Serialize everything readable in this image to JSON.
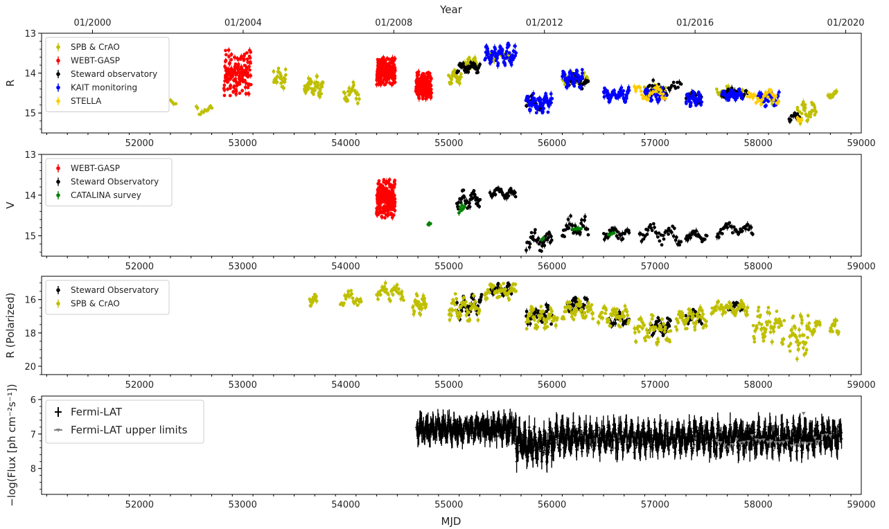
{
  "top_axis": {
    "label": "Year",
    "ticks": [
      {
        "label": "01/2000",
        "mjd": 51544
      },
      {
        "label": "01/2004",
        "mjd": 53005
      },
      {
        "label": "01/2008",
        "mjd": 54466
      },
      {
        "label": "01/2012",
        "mjd": 55927
      },
      {
        "label": "01/2016",
        "mjd": 57388
      },
      {
        "label": "01/2020",
        "mjd": 58849
      }
    ]
  },
  "x_axis": {
    "label": "MJD",
    "range": [
      51050,
      59000
    ],
    "ticks": [
      "52000",
      "53000",
      "54000",
      "55000",
      "56000",
      "57000",
      "58000",
      "59000"
    ]
  },
  "colors": {
    "olive": "#bfbf00",
    "red": "#ff0000",
    "black": "#000000",
    "blue": "#0000ff",
    "gold": "#ffcc00",
    "green": "#008000",
    "gray": "#808080"
  },
  "chart_data": [
    {
      "type": "scatter",
      "panel": "R band photometry",
      "ylabel": "R",
      "ylim": [
        15.5,
        13
      ],
      "y_inverted": true,
      "yticks": [
        "13",
        "14",
        "15"
      ],
      "grid": false,
      "legend_position": "top-left",
      "series": [
        {
          "name": "SPB & CrAO",
          "color": "#bfbf00",
          "segments": [
            {
              "x0": 52300,
              "x1": 52350,
              "y": 14.7,
              "amp": 0.1,
              "n": 4
            },
            {
              "x0": 52550,
              "x1": 52700,
              "y": 14.9,
              "amp": 0.2,
              "n": 12
            },
            {
              "x0": 53300,
              "x1": 53420,
              "y": 14.1,
              "amp": 0.35,
              "n": 30
            },
            {
              "x0": 53600,
              "x1": 53780,
              "y": 14.35,
              "amp": 0.3,
              "n": 50
            },
            {
              "x0": 53980,
              "x1": 54130,
              "y": 14.5,
              "amp": 0.3,
              "n": 25
            },
            {
              "x0": 55000,
              "x1": 55120,
              "y": 14.1,
              "amp": 0.2,
              "n": 30
            },
            {
              "x0": 55150,
              "x1": 55270,
              "y": 13.75,
              "amp": 0.15,
              "n": 40
            },
            {
              "x0": 55400,
              "x1": 55600,
              "y": 13.55,
              "amp": 0.15,
              "n": 30
            },
            {
              "x0": 56100,
              "x1": 56350,
              "y": 14.15,
              "amp": 0.2,
              "n": 40
            },
            {
              "x0": 56900,
              "x1": 57100,
              "y": 14.45,
              "amp": 0.2,
              "n": 30
            },
            {
              "x0": 57600,
              "x1": 57850,
              "y": 14.45,
              "amp": 0.15,
              "n": 30
            },
            {
              "x0": 58000,
              "x1": 58150,
              "y": 14.6,
              "amp": 0.2,
              "n": 25
            },
            {
              "x0": 58380,
              "x1": 58560,
              "y": 14.95,
              "amp": 0.35,
              "n": 40
            },
            {
              "x0": 58680,
              "x1": 58760,
              "y": 14.55,
              "amp": 0.1,
              "n": 15
            }
          ]
        },
        {
          "name": "WEBT-GASP",
          "color": "#ff0000",
          "segments": [
            {
              "x0": 52820,
              "x1": 53080,
              "y": 14.0,
              "amp": 0.6,
              "n": 160
            },
            {
              "x0": 54300,
              "x1": 54480,
              "y": 13.95,
              "amp": 0.35,
              "n": 180
            },
            {
              "x0": 54680,
              "x1": 54830,
              "y": 14.3,
              "amp": 0.35,
              "n": 170
            }
          ]
        },
        {
          "name": "Steward observatory",
          "color": "#000000",
          "segments": [
            {
              "x0": 55080,
              "x1": 55300,
              "y": 13.85,
              "amp": 0.15,
              "n": 40
            },
            {
              "x0": 55750,
              "x1": 55900,
              "y": 14.75,
              "amp": 0.2,
              "n": 20
            },
            {
              "x0": 56150,
              "x1": 56350,
              "y": 14.2,
              "amp": 0.2,
              "n": 25
            },
            {
              "x0": 56900,
              "x1": 57250,
              "y": 14.4,
              "amp": 0.25,
              "n": 30
            },
            {
              "x0": 57300,
              "x1": 57450,
              "y": 14.6,
              "amp": 0.15,
              "n": 20
            },
            {
              "x0": 57650,
              "x1": 57900,
              "y": 14.5,
              "amp": 0.15,
              "n": 25
            },
            {
              "x0": 58300,
              "x1": 58400,
              "y": 15.1,
              "amp": 0.15,
              "n": 15
            }
          ]
        },
        {
          "name": "KAIT monitoring",
          "color": "#0000ff",
          "segments": [
            {
              "x0": 55350,
              "x1": 55650,
              "y": 13.55,
              "amp": 0.3,
              "n": 80
            },
            {
              "x0": 55750,
              "x1": 56000,
              "y": 14.75,
              "amp": 0.25,
              "n": 80
            },
            {
              "x0": 56100,
              "x1": 56300,
              "y": 14.15,
              "amp": 0.25,
              "n": 60
            },
            {
              "x0": 56500,
              "x1": 56750,
              "y": 14.55,
              "amp": 0.2,
              "n": 60
            },
            {
              "x0": 56900,
              "x1": 57100,
              "y": 14.55,
              "amp": 0.2,
              "n": 50
            },
            {
              "x0": 57300,
              "x1": 57450,
              "y": 14.65,
              "amp": 0.2,
              "n": 50
            },
            {
              "x0": 57650,
              "x1": 57850,
              "y": 14.55,
              "amp": 0.15,
              "n": 50
            },
            {
              "x0": 58000,
              "x1": 58200,
              "y": 14.65,
              "amp": 0.2,
              "n": 40
            }
          ]
        },
        {
          "name": "STELLA",
          "color": "#ffcc00",
          "segments": [
            {
              "x0": 56800,
              "x1": 57100,
              "y": 14.5,
              "amp": 0.2,
              "n": 30
            },
            {
              "x0": 57900,
              "x1": 58200,
              "y": 14.6,
              "amp": 0.2,
              "n": 30
            },
            {
              "x0": 58380,
              "x1": 58420,
              "y": 15.2,
              "amp": 0.1,
              "n": 6
            }
          ]
        }
      ]
    },
    {
      "type": "scatter",
      "panel": "V band photometry",
      "ylabel": "V",
      "ylim": [
        15.5,
        13
      ],
      "y_inverted": true,
      "yticks": [
        "13",
        "14",
        "15"
      ],
      "grid": false,
      "legend_position": "top-left",
      "series": [
        {
          "name": "WEBT-GASP",
          "color": "#ff0000",
          "segments": [
            {
              "x0": 54300,
              "x1": 54480,
              "y": 14.1,
              "amp": 0.5,
              "n": 220
            }
          ]
        },
        {
          "name": "Steward Observatory",
          "color": "#000000",
          "segments": [
            {
              "x0": 55080,
              "x1": 55300,
              "y": 14.1,
              "amp": 0.25,
              "n": 40
            },
            {
              "x0": 55400,
              "x1": 55650,
              "y": 13.95,
              "amp": 0.15,
              "n": 35
            },
            {
              "x0": 55750,
              "x1": 56000,
              "y": 15.1,
              "amp": 0.3,
              "n": 35
            },
            {
              "x0": 56100,
              "x1": 56350,
              "y": 14.8,
              "amp": 0.3,
              "n": 35
            },
            {
              "x0": 56500,
              "x1": 56750,
              "y": 14.95,
              "amp": 0.15,
              "n": 30
            },
            {
              "x0": 56850,
              "x1": 57250,
              "y": 14.95,
              "amp": 0.3,
              "n": 40
            },
            {
              "x0": 57300,
              "x1": 57500,
              "y": 15.0,
              "amp": 0.15,
              "n": 25
            },
            {
              "x0": 57600,
              "x1": 57950,
              "y": 14.85,
              "amp": 0.2,
              "n": 35
            }
          ]
        },
        {
          "name": "CATALINA survey",
          "color": "#008000",
          "segments": [
            {
              "x0": 54800,
              "x1": 54820,
              "y": 14.7,
              "amp": 0.03,
              "n": 5
            },
            {
              "x0": 55100,
              "x1": 55150,
              "y": 14.3,
              "amp": 0.15,
              "n": 6
            },
            {
              "x0": 55900,
              "x1": 55920,
              "y": 15.05,
              "amp": 0.05,
              "n": 3
            },
            {
              "x0": 56200,
              "x1": 56280,
              "y": 14.8,
              "amp": 0.1,
              "n": 5
            },
            {
              "x0": 56550,
              "x1": 56600,
              "y": 14.95,
              "amp": 0.05,
              "n": 4
            }
          ]
        }
      ]
    },
    {
      "type": "scatter",
      "panel": "R band polarized flux",
      "ylabel": "R (Polarized)",
      "ylim": [
        20.5,
        14.6
      ],
      "y_inverted": true,
      "yticks": [
        "16",
        "18",
        "20"
      ],
      "grid": false,
      "legend_position": "top-left",
      "series": [
        {
          "name": "Steward Observatory",
          "color": "#000000",
          "segments": [
            {
              "x0": 55080,
              "x1": 55320,
              "y": 16.4,
              "amp": 0.8,
              "n": 50
            },
            {
              "x0": 55400,
              "x1": 55620,
              "y": 15.4,
              "amp": 0.4,
              "n": 40
            },
            {
              "x0": 55750,
              "x1": 56000,
              "y": 16.9,
              "amp": 0.7,
              "n": 40
            },
            {
              "x0": 56150,
              "x1": 56350,
              "y": 16.3,
              "amp": 0.5,
              "n": 35
            },
            {
              "x0": 56550,
              "x1": 56750,
              "y": 17.2,
              "amp": 0.5,
              "n": 30
            },
            {
              "x0": 56950,
              "x1": 57150,
              "y": 17.6,
              "amp": 0.6,
              "n": 35
            },
            {
              "x0": 57300,
              "x1": 57450,
              "y": 17.0,
              "amp": 0.5,
              "n": 25
            },
            {
              "x0": 57700,
              "x1": 57850,
              "y": 16.4,
              "amp": 0.3,
              "n": 25
            }
          ]
        },
        {
          "name": "SPB & CrAO",
          "color": "#bfbf00",
          "segments": [
            {
              "x0": 53650,
              "x1": 53720,
              "y": 16.0,
              "amp": 0.4,
              "n": 15
            },
            {
              "x0": 53950,
              "x1": 54150,
              "y": 15.9,
              "amp": 0.5,
              "n": 25
            },
            {
              "x0": 54300,
              "x1": 54560,
              "y": 15.5,
              "amp": 0.6,
              "n": 40
            },
            {
              "x0": 54650,
              "x1": 54780,
              "y": 16.3,
              "amp": 0.7,
              "n": 35
            },
            {
              "x0": 55000,
              "x1": 55300,
              "y": 16.5,
              "amp": 0.9,
              "n": 60
            },
            {
              "x0": 55350,
              "x1": 55650,
              "y": 15.5,
              "amp": 0.5,
              "n": 50
            },
            {
              "x0": 55750,
              "x1": 56050,
              "y": 17.1,
              "amp": 0.8,
              "n": 60
            },
            {
              "x0": 56100,
              "x1": 56400,
              "y": 16.6,
              "amp": 0.6,
              "n": 55
            },
            {
              "x0": 56450,
              "x1": 56750,
              "y": 17.0,
              "amp": 0.7,
              "n": 55
            },
            {
              "x0": 56800,
              "x1": 57150,
              "y": 17.8,
              "amp": 0.9,
              "n": 60
            },
            {
              "x0": 57200,
              "x1": 57500,
              "y": 17.1,
              "amp": 0.8,
              "n": 60
            },
            {
              "x0": 57550,
              "x1": 57900,
              "y": 16.5,
              "amp": 0.5,
              "n": 60
            },
            {
              "x0": 57950,
              "x1": 58250,
              "y": 17.6,
              "amp": 1.2,
              "n": 60
            },
            {
              "x0": 58300,
              "x1": 58500,
              "y": 18.2,
              "amp": 1.4,
              "n": 50
            },
            {
              "x0": 58520,
              "x1": 58600,
              "y": 17.6,
              "amp": 0.5,
              "n": 15
            },
            {
              "x0": 58700,
              "x1": 58780,
              "y": 17.6,
              "amp": 0.6,
              "n": 20
            }
          ]
        }
      ]
    },
    {
      "type": "scatter",
      "panel": "Fermi-LAT gamma-ray flux",
      "ylabel": "−log(Flux [ph cm⁻²s⁻¹])",
      "ylim": [
        8.75,
        5.9
      ],
      "y_inverted": true,
      "yticks": [
        "6",
        "7",
        "8"
      ],
      "grid": false,
      "legend_position": "top-left",
      "series": [
        {
          "name": "Fermi-LAT",
          "color": "#000000",
          "segments": [
            {
              "x0": 54690,
              "x1": 55650,
              "y": 6.85,
              "amp": 0.3,
              "n": 320
            },
            {
              "x0": 55650,
              "x1": 56000,
              "y": 7.3,
              "amp": 0.55,
              "n": 130
            },
            {
              "x0": 56000,
              "x1": 58810,
              "y": 7.1,
              "amp": 0.45,
              "n": 900
            }
          ]
        },
        {
          "name": "Fermi-LAT upper limits",
          "color": "#808080",
          "segments": [
            {
              "x0": 57600,
              "x1": 58700,
              "y": 7.2,
              "amp": 0.2,
              "n": 30
            },
            {
              "x0": 58440,
              "x1": 58445,
              "y": 6.4,
              "amp": 0.0,
              "n": 1
            }
          ]
        }
      ]
    }
  ]
}
